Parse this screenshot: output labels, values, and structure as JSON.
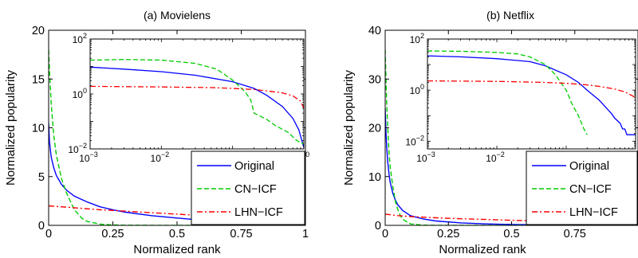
{
  "chart_data": [
    {
      "type": "line",
      "title": "(a) Movielens",
      "xlabel": "Normalized rank",
      "ylabel": "Normalized popularity",
      "xlim": [
        0,
        1
      ],
      "ylim": [
        0,
        20
      ],
      "x_ticks": [
        0,
        0.25,
        0.5,
        0.75,
        1
      ],
      "x_tick_labels": [
        "0",
        "0.25",
        "0.5",
        "0.75",
        "1"
      ],
      "y_ticks": [
        0,
        5,
        10,
        15,
        20
      ],
      "y_tick_labels": [
        "0",
        "5",
        "10",
        "15",
        "20"
      ],
      "legend_position": "bottom-right",
      "colors": {
        "Original": "#0000ff",
        "CN−ICF": "#00cc00",
        "LHN−ICF": "#ff0000"
      },
      "series": [
        {
          "name": "Original",
          "style": "solid",
          "x": [
            0,
            0.003,
            0.01,
            0.02,
            0.03,
            0.05,
            0.07,
            0.1,
            0.15,
            0.2,
            0.25,
            0.3,
            0.4,
            0.5,
            0.6,
            0.7,
            0.8,
            0.9,
            0.95,
            1.0
          ],
          "y": [
            10.5,
            8.6,
            7.0,
            5.9,
            5.1,
            4.2,
            3.6,
            3.0,
            2.4,
            1.9,
            1.6,
            1.35,
            1.0,
            0.75,
            0.52,
            0.35,
            0.22,
            0.12,
            0.08,
            0.04
          ]
        },
        {
          "name": "CN−ICF",
          "style": "dashed",
          "x": [
            0,
            0.003,
            0.01,
            0.02,
            0.03,
            0.05,
            0.07,
            0.1,
            0.13,
            0.15,
            0.2,
            0.25,
            0.3,
            0.4,
            0.5,
            0.6,
            0.7,
            0.8,
            1.0
          ],
          "y": [
            18.0,
            16.0,
            12.5,
            9.2,
            7.2,
            4.8,
            3.3,
            1.6,
            0.7,
            0.4,
            0.12,
            0.05,
            0.02,
            0.01,
            0.01,
            0.01,
            0.01,
            0.01,
            0.01
          ]
        },
        {
          "name": "LHN−ICF",
          "style": "dash-dot",
          "x": [
            0,
            0.05,
            0.1,
            0.2,
            0.3,
            0.4,
            0.5,
            0.6,
            0.7,
            0.8,
            0.9,
            1.0
          ],
          "y": [
            2.0,
            1.9,
            1.8,
            1.6,
            1.45,
            1.3,
            1.15,
            1.0,
            0.9,
            0.75,
            0.6,
            0.4
          ]
        }
      ],
      "inset": {
        "x_scale": "log",
        "y_scale": "log",
        "xlim": [
          0.001,
          1
        ],
        "ylim": [
          0.01,
          100
        ],
        "x_ticks": [
          0.001,
          0.01,
          0.1,
          1
        ],
        "y_ticks": [
          0.01,
          1,
          100
        ],
        "x_tick_labels": [
          {
            "base": "10",
            "exp": "−3"
          },
          {
            "base": "10",
            "exp": "−2"
          },
          {
            "base": "10",
            "exp": "−1"
          },
          {
            "base": "10",
            "exp": "0"
          }
        ],
        "y_tick_labels": [
          {
            "base": "10",
            "exp": "−2"
          },
          {
            "base": "10",
            "exp": "0"
          },
          {
            "base": "10",
            "exp": "2"
          }
        ],
        "series": [
          {
            "name": "Original",
            "style": "solid",
            "x": [
              0.001,
              0.003,
              0.01,
              0.03,
              0.1,
              0.2,
              0.3,
              0.5,
              0.7,
              0.85,
              1.0
            ],
            "y": [
              9.5,
              8.0,
              6.5,
              4.8,
              2.8,
              1.6,
              0.9,
              0.35,
              0.13,
              0.05,
              0.011
            ]
          },
          {
            "name": "CN−ICF",
            "style": "dashed",
            "x": [
              0.001,
              0.003,
              0.01,
              0.03,
              0.06,
              0.1,
              0.15,
              0.18,
              0.2,
              0.3,
              0.4,
              0.6,
              0.8,
              1.0
            ],
            "y": [
              17,
              18,
              17,
              13,
              8,
              3.2,
              1.2,
              0.6,
              0.2,
              0.12,
              0.07,
              0.04,
              0.02,
              0.015
            ]
          },
          {
            "name": "LHN−ICF",
            "style": "dash-dot",
            "x": [
              0.001,
              0.01,
              0.05,
              0.1,
              0.2,
              0.3,
              0.5,
              0.7,
              0.9,
              1.0
            ],
            "y": [
              1.9,
              1.8,
              1.7,
              1.6,
              1.45,
              1.3,
              1.1,
              0.85,
              0.55,
              0.3
            ]
          }
        ]
      }
    },
    {
      "type": "line",
      "title": "(b) Netflix",
      "xlabel": "Normalized rank",
      "ylabel": "Normalized popularity",
      "xlim": [
        0,
        1
      ],
      "ylim": [
        0,
        40
      ],
      "x_ticks": [
        0,
        0.25,
        0.5,
        0.75,
        1
      ],
      "x_tick_labels": [
        "0",
        "0.25",
        "0.5",
        "0.75",
        ""
      ],
      "y_ticks": [
        0,
        10,
        20,
        30,
        40
      ],
      "y_tick_labels": [
        "0",
        "10",
        "20",
        "30",
        "40"
      ],
      "legend_position": "bottom-right",
      "colors": {
        "Original": "#0000ff",
        "CN−ICF": "#00cc00",
        "LHN−ICF": "#ff0000"
      },
      "series": [
        {
          "name": "Original",
          "style": "solid",
          "x": [
            0,
            0.003,
            0.006,
            0.01,
            0.015,
            0.02,
            0.03,
            0.04,
            0.05,
            0.07,
            0.1,
            0.15,
            0.2,
            0.3,
            0.4,
            0.5,
            0.7,
            1.0
          ],
          "y": [
            24,
            19,
            16,
            13,
            10.5,
            8.8,
            6.6,
            5.2,
            4.2,
            3.0,
            2.0,
            1.3,
            0.9,
            0.5,
            0.3,
            0.18,
            0.08,
            0.02
          ]
        },
        {
          "name": "CN−ICF",
          "style": "dashed",
          "x": [
            0,
            0.003,
            0.006,
            0.01,
            0.015,
            0.02,
            0.03,
            0.04,
            0.05,
            0.06,
            0.07,
            0.1,
            0.15,
            0.2,
            0.3,
            1.0
          ],
          "y": [
            36,
            30,
            25,
            20,
            15,
            12,
            8.0,
            5.0,
            3.2,
            2.0,
            1.2,
            0.3,
            0.05,
            0.02,
            0.02,
            0.02
          ]
        },
        {
          "name": "LHN−ICF",
          "style": "dash-dot",
          "x": [
            0,
            0.05,
            0.1,
            0.2,
            0.3,
            0.4,
            0.5,
            0.6,
            0.7,
            0.8,
            0.9,
            1.0
          ],
          "y": [
            2.3,
            2.0,
            1.8,
            1.55,
            1.35,
            1.2,
            1.05,
            0.9,
            0.8,
            0.7,
            0.6,
            0.5
          ]
        }
      ],
      "inset": {
        "x_scale": "log",
        "y_scale": "log",
        "xlim": [
          0.001,
          1
        ],
        "ylim": [
          0.005,
          100
        ],
        "x_ticks": [
          0.001,
          0.01,
          0.1,
          1
        ],
        "y_ticks": [
          0.01,
          1,
          100
        ],
        "x_tick_labels": [
          {
            "base": "10",
            "exp": "−3"
          },
          {
            "base": "10",
            "exp": "−2"
          },
          {
            "base": "10",
            "exp": "−1"
          },
          {
            "base": "10",
            "exp": "0"
          }
        ],
        "y_tick_labels": [
          {
            "base": "10",
            "exp": "−2"
          },
          {
            "base": "10",
            "exp": "0"
          },
          {
            "base": "10",
            "exp": "2"
          }
        ],
        "series": [
          {
            "name": "Original",
            "style": "solid",
            "x": [
              0.001,
              0.003,
              0.01,
              0.03,
              0.05,
              0.1,
              0.15,
              0.2,
              0.3,
              0.45,
              0.5,
              0.6,
              0.65,
              0.7,
              0.75,
              0.8,
              1.0
            ],
            "y": [
              22,
              20,
              17,
              13,
              9,
              4,
              2,
              1.0,
              0.4,
              0.12,
              0.08,
              0.05,
              0.03,
              0.03,
              0.018,
              0.018,
              0.018
            ]
          },
          {
            "name": "CN−ICF",
            "style": "dashed",
            "x": [
              0.001,
              0.003,
              0.01,
              0.02,
              0.03,
              0.05,
              0.07,
              0.1,
              0.12,
              0.15,
              0.18,
              0.2
            ],
            "y": [
              34,
              33,
              30,
              26,
              20,
              10,
              4,
              1.0,
              0.3,
              0.1,
              0.03,
              0.018
            ]
          },
          {
            "name": "LHN−ICF",
            "style": "dash-dot",
            "x": [
              0.001,
              0.01,
              0.05,
              0.1,
              0.2,
              0.3,
              0.5,
              0.7,
              0.9,
              1.0
            ],
            "y": [
              2.3,
              2.2,
              2.0,
              1.85,
              1.6,
              1.4,
              1.1,
              0.85,
              0.6,
              0.5
            ]
          }
        ]
      }
    }
  ]
}
